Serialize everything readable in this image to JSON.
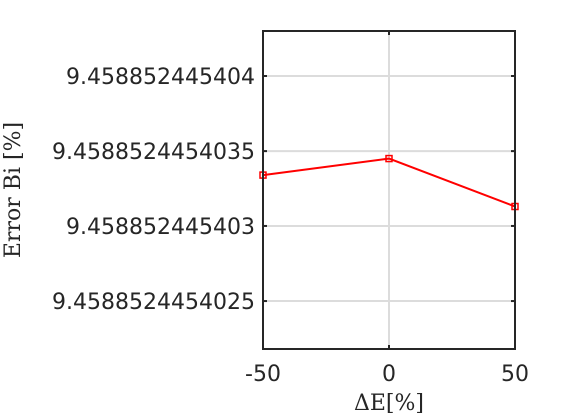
{
  "chart_data": {
    "type": "line",
    "xlabel": "ΔE[%]",
    "ylabel": "Error Bi [%]",
    "title": "",
    "x": [
      -50,
      0,
      50
    ],
    "series": [
      {
        "values": [
          9.45885244540334,
          9.45885244540345,
          9.45885244540313
        ],
        "color": "#ff0000",
        "marker": "square"
      }
    ],
    "xlim": [
      -50,
      50
    ],
    "ylim": [
      9.45885244540218,
      9.4588524454043
    ],
    "x_ticks": [
      -50,
      0,
      50
    ],
    "x_tick_labels": [
      "-50",
      "0",
      "50"
    ],
    "y_ticks": [
      9.4588524454025,
      9.458852445403,
      9.4588524454035,
      9.458852445404
    ],
    "y_tick_labels": [
      "9.4588524454025",
      "9.458852445403",
      "9.4588524454035",
      "9.458852445404"
    ],
    "grid": true,
    "grid_color": "#dcdcdc",
    "axis_color": "#262626"
  }
}
